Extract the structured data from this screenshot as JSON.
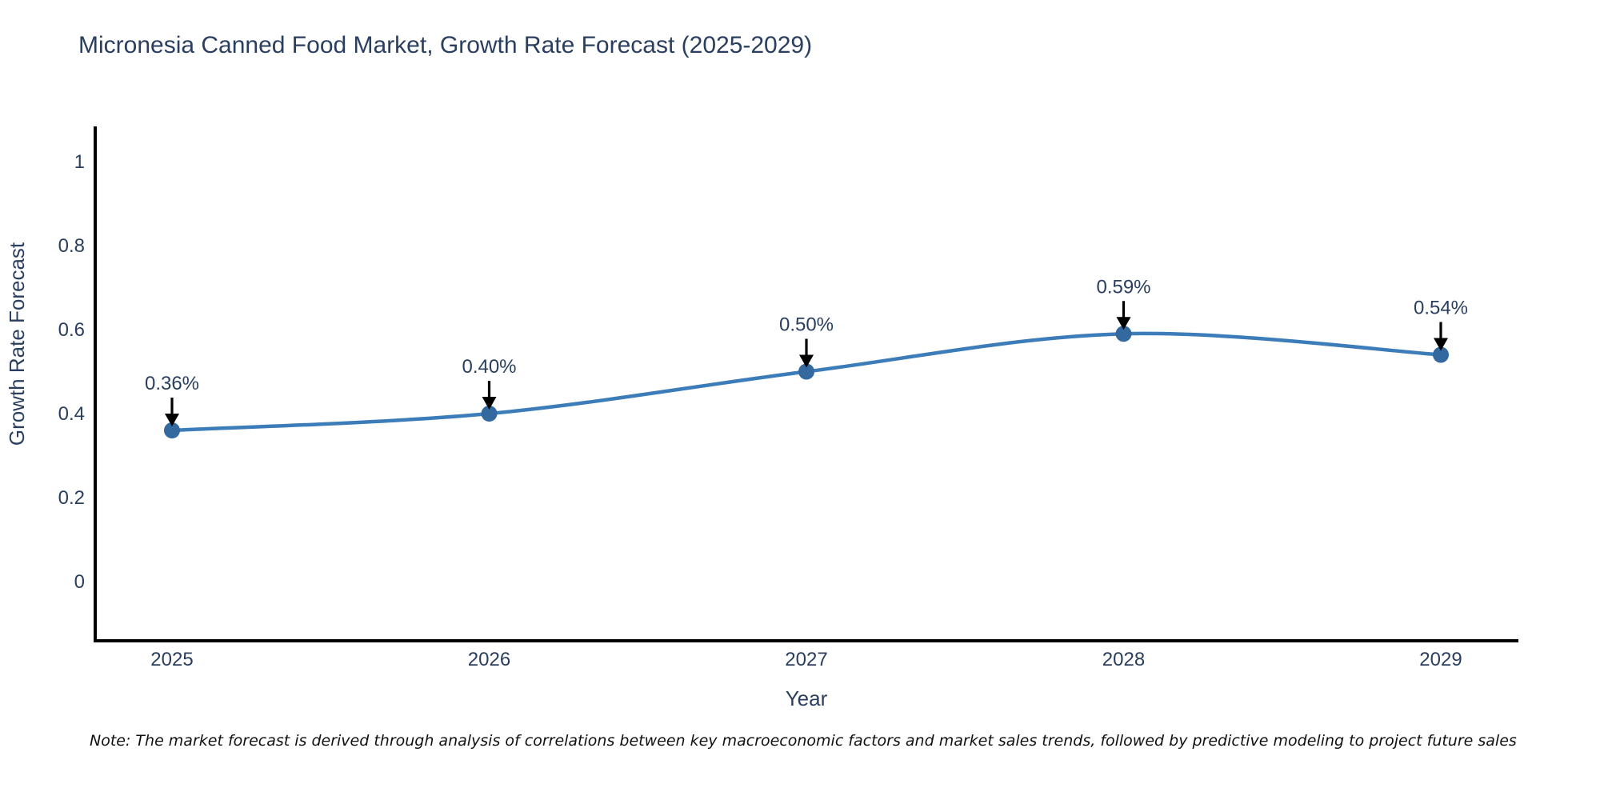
{
  "title": "Micronesia Canned Food Market, Growth Rate Forecast (2025-2029)",
  "note": "Note: The market forecast is derived through analysis of correlations between key macroeconomic factors and market sales trends, followed by predictive modeling to project future sales",
  "chart_data": {
    "type": "line",
    "line_shape": "spline",
    "x": [
      2025,
      2026,
      2027,
      2028,
      2029
    ],
    "series": [
      {
        "name": "Growth Rate Forecast",
        "values": [
          0.36,
          0.4,
          0.5,
          0.59,
          0.54
        ]
      }
    ],
    "point_labels": [
      "0.36%",
      "0.40%",
      "0.50%",
      "0.59%",
      "0.54%"
    ],
    "annotation_style": "text-with-down-arrow",
    "title": "Micronesia Canned Food Market, Growth Rate Forecast (2025-2029)",
    "xlabel": "Year",
    "ylabel": "Growth Rate Forecast",
    "yticks": [
      0,
      0.2,
      0.4,
      0.6,
      0.8,
      1
    ],
    "ylim": [
      -0.14,
      1.08
    ],
    "grid": false,
    "legend": "none",
    "colors": {
      "line": "#3c7cb8",
      "marker": "#33699e",
      "axis": "#000000",
      "text": "#2a3f5f",
      "arrow": "#000000",
      "background": "#ffffff"
    }
  }
}
